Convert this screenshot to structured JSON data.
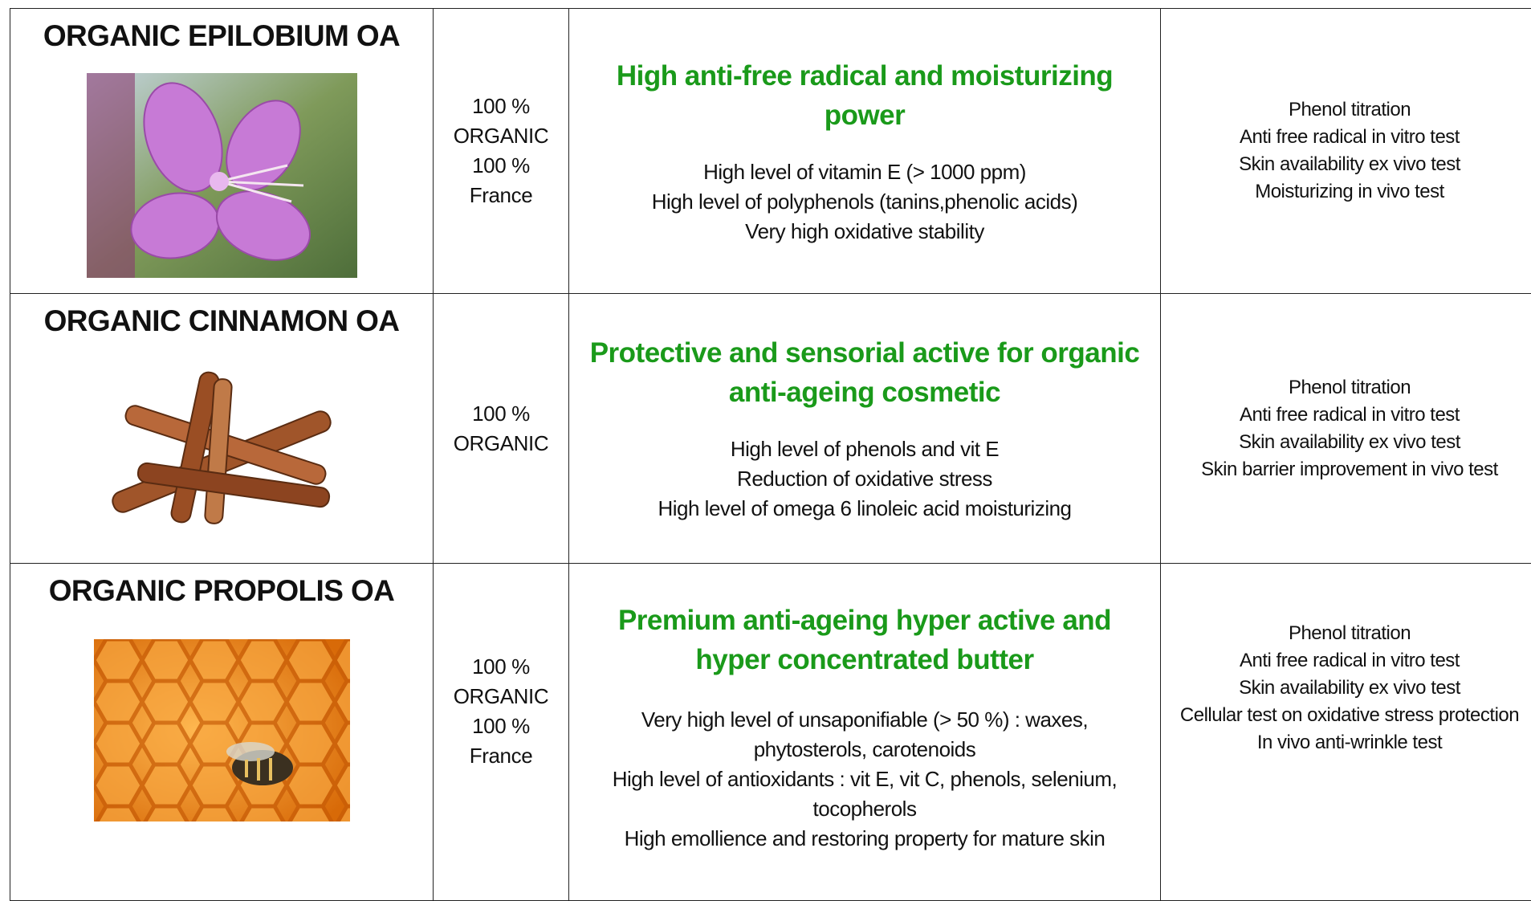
{
  "rows": [
    {
      "name": "ORGANIC EPILOBIUM OA",
      "origin": [
        "100 %",
        "ORGANIC",
        "100 %",
        "France"
      ],
      "headline": "High anti-free radical and moisturizing power",
      "features": [
        "High level of vitamin E (> 1000 ppm)",
        "High level of polyphenols (tanins,phenolic acids)",
        "Very high oxidative stability"
      ],
      "tests": [
        "Phenol titration",
        "Anti free radical in vitro test",
        "Skin availability ex vivo test",
        "Moisturizing in vivo test"
      ]
    },
    {
      "name": "ORGANIC CINNAMON OA",
      "origin": [
        "100 %",
        "ORGANIC"
      ],
      "headline": "Protective and sensorial active for organic anti-ageing cosmetic",
      "features": [
        "High level of phenols and vit E",
        "Reduction of oxidative stress",
        "High level of omega 6 linoleic acid moisturizing"
      ],
      "tests": [
        "Phenol titration",
        "Anti free radical in vitro test",
        "Skin availability ex vivo test",
        "Skin barrier improvement in vivo test"
      ]
    },
    {
      "name": "ORGANIC PROPOLIS OA",
      "origin": [
        "100 %",
        "ORGANIC",
        "100 %",
        "France"
      ],
      "headline": "Premium anti-ageing hyper active and hyper concentrated butter",
      "features": [
        "Very high level of unsaponifiable (> 50 %) : waxes, phytosterols,  carotenoids",
        "High level of antioxidants : vit E, vit C, phenols, selenium, tocopherols",
        "High emollience and restoring property for mature skin"
      ],
      "tests": [
        "Phenol titration",
        "Anti free radical in vitro test",
        "Skin availability ex vivo test",
        "Cellular test on oxidative stress protection",
        "In vivo anti-wrinkle test"
      ]
    }
  ]
}
